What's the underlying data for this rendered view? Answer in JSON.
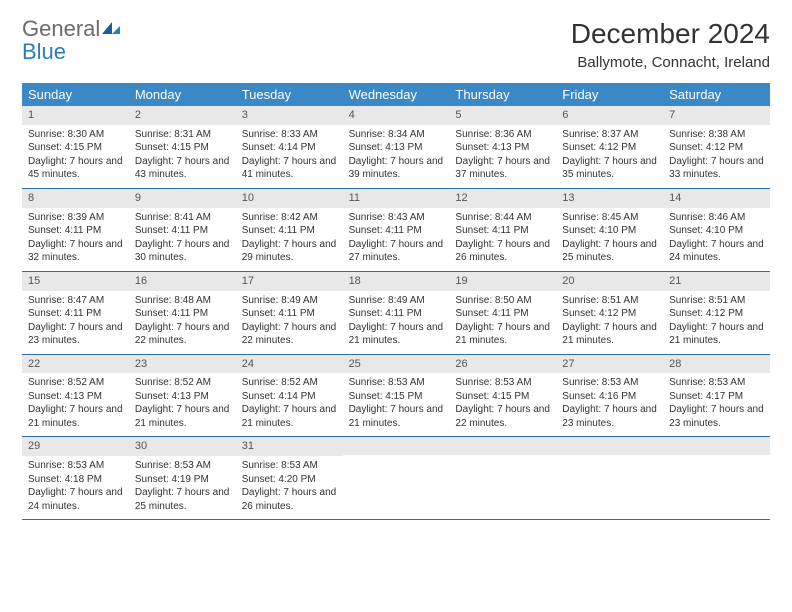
{
  "logo": {
    "general": "General",
    "blue": "Blue"
  },
  "title": "December 2024",
  "location": "Ballymote, Connacht, Ireland",
  "colors": {
    "header_bg": "#3a88c5",
    "header_text": "#ffffff",
    "daynum_bg": "#e8e8e8",
    "border": "#2a6fa8",
    "logo_gray": "#6b6b6b",
    "logo_blue": "#2a7fb8"
  },
  "dayNames": [
    "Sunday",
    "Monday",
    "Tuesday",
    "Wednesday",
    "Thursday",
    "Friday",
    "Saturday"
  ],
  "weeks": [
    [
      {
        "n": "1",
        "sr": "8:30 AM",
        "ss": "4:15 PM",
        "dl": "7 hours and 45 minutes."
      },
      {
        "n": "2",
        "sr": "8:31 AM",
        "ss": "4:15 PM",
        "dl": "7 hours and 43 minutes."
      },
      {
        "n": "3",
        "sr": "8:33 AM",
        "ss": "4:14 PM",
        "dl": "7 hours and 41 minutes."
      },
      {
        "n": "4",
        "sr": "8:34 AM",
        "ss": "4:13 PM",
        "dl": "7 hours and 39 minutes."
      },
      {
        "n": "5",
        "sr": "8:36 AM",
        "ss": "4:13 PM",
        "dl": "7 hours and 37 minutes."
      },
      {
        "n": "6",
        "sr": "8:37 AM",
        "ss": "4:12 PM",
        "dl": "7 hours and 35 minutes."
      },
      {
        "n": "7",
        "sr": "8:38 AM",
        "ss": "4:12 PM",
        "dl": "7 hours and 33 minutes."
      }
    ],
    [
      {
        "n": "8",
        "sr": "8:39 AM",
        "ss": "4:11 PM",
        "dl": "7 hours and 32 minutes."
      },
      {
        "n": "9",
        "sr": "8:41 AM",
        "ss": "4:11 PM",
        "dl": "7 hours and 30 minutes."
      },
      {
        "n": "10",
        "sr": "8:42 AM",
        "ss": "4:11 PM",
        "dl": "7 hours and 29 minutes."
      },
      {
        "n": "11",
        "sr": "8:43 AM",
        "ss": "4:11 PM",
        "dl": "7 hours and 27 minutes."
      },
      {
        "n": "12",
        "sr": "8:44 AM",
        "ss": "4:11 PM",
        "dl": "7 hours and 26 minutes."
      },
      {
        "n": "13",
        "sr": "8:45 AM",
        "ss": "4:10 PM",
        "dl": "7 hours and 25 minutes."
      },
      {
        "n": "14",
        "sr": "8:46 AM",
        "ss": "4:10 PM",
        "dl": "7 hours and 24 minutes."
      }
    ],
    [
      {
        "n": "15",
        "sr": "8:47 AM",
        "ss": "4:11 PM",
        "dl": "7 hours and 23 minutes."
      },
      {
        "n": "16",
        "sr": "8:48 AM",
        "ss": "4:11 PM",
        "dl": "7 hours and 22 minutes."
      },
      {
        "n": "17",
        "sr": "8:49 AM",
        "ss": "4:11 PM",
        "dl": "7 hours and 22 minutes."
      },
      {
        "n": "18",
        "sr": "8:49 AM",
        "ss": "4:11 PM",
        "dl": "7 hours and 21 minutes."
      },
      {
        "n": "19",
        "sr": "8:50 AM",
        "ss": "4:11 PM",
        "dl": "7 hours and 21 minutes."
      },
      {
        "n": "20",
        "sr": "8:51 AM",
        "ss": "4:12 PM",
        "dl": "7 hours and 21 minutes."
      },
      {
        "n": "21",
        "sr": "8:51 AM",
        "ss": "4:12 PM",
        "dl": "7 hours and 21 minutes."
      }
    ],
    [
      {
        "n": "22",
        "sr": "8:52 AM",
        "ss": "4:13 PM",
        "dl": "7 hours and 21 minutes."
      },
      {
        "n": "23",
        "sr": "8:52 AM",
        "ss": "4:13 PM",
        "dl": "7 hours and 21 minutes."
      },
      {
        "n": "24",
        "sr": "8:52 AM",
        "ss": "4:14 PM",
        "dl": "7 hours and 21 minutes."
      },
      {
        "n": "25",
        "sr": "8:53 AM",
        "ss": "4:15 PM",
        "dl": "7 hours and 21 minutes."
      },
      {
        "n": "26",
        "sr": "8:53 AM",
        "ss": "4:15 PM",
        "dl": "7 hours and 22 minutes."
      },
      {
        "n": "27",
        "sr": "8:53 AM",
        "ss": "4:16 PM",
        "dl": "7 hours and 23 minutes."
      },
      {
        "n": "28",
        "sr": "8:53 AM",
        "ss": "4:17 PM",
        "dl": "7 hours and 23 minutes."
      }
    ],
    [
      {
        "n": "29",
        "sr": "8:53 AM",
        "ss": "4:18 PM",
        "dl": "7 hours and 24 minutes."
      },
      {
        "n": "30",
        "sr": "8:53 AM",
        "ss": "4:19 PM",
        "dl": "7 hours and 25 minutes."
      },
      {
        "n": "31",
        "sr": "8:53 AM",
        "ss": "4:20 PM",
        "dl": "7 hours and 26 minutes."
      },
      null,
      null,
      null,
      null
    ]
  ],
  "labels": {
    "sunrise": "Sunrise:",
    "sunset": "Sunset:",
    "daylight": "Daylight:"
  }
}
